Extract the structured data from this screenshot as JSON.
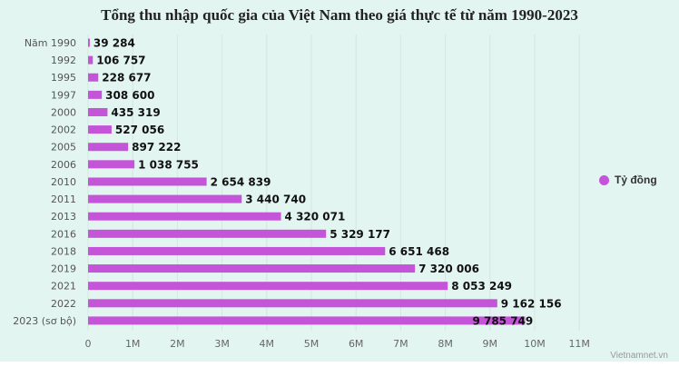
{
  "chart_data": {
    "type": "bar",
    "orientation": "horizontal",
    "title": "Tổng thu nhập quốc gia của Việt Nam theo giá thực tế từ năm 1990-2023",
    "categories": [
      "Năm 1990",
      "1992",
      "1995",
      "1997",
      "2000",
      "2002",
      "2005",
      "2006",
      "2010",
      "2011",
      "2013",
      "2016",
      "2018",
      "2019",
      "2021",
      "2022",
      "2023 (sơ bộ)"
    ],
    "series": [
      {
        "name": "Tỷ đồng",
        "color": "#c455d8",
        "values": [
          39284,
          106757,
          228677,
          308600,
          435319,
          527056,
          897222,
          1038755,
          2654839,
          3440740,
          4320071,
          5329177,
          6651468,
          7320006,
          8053249,
          9162156,
          9785749
        ]
      }
    ],
    "data_labels": [
      "39 284",
      "106 757",
      "228 677",
      "308 600",
      "435 319",
      "527 056",
      "897 222",
      "1 038 755",
      "2 654 839",
      "3 440 740",
      "4 320 071",
      "5 329 177",
      "6 651 468",
      "7 320 006",
      "8 053 249",
      "9 162 156",
      "9 785 749"
    ],
    "xlim": [
      0,
      11000000
    ],
    "xticks": [
      0,
      1000000,
      2000000,
      3000000,
      4000000,
      5000000,
      6000000,
      7000000,
      8000000,
      9000000,
      10000000,
      11000000
    ],
    "xtick_labels": [
      "0",
      "1M",
      "2M",
      "3M",
      "4M",
      "5M",
      "6M",
      "7M",
      "8M",
      "9M",
      "10M",
      "11M"
    ],
    "grid": true,
    "legend_position": "right"
  },
  "credit": "Vietnamnet.vn"
}
